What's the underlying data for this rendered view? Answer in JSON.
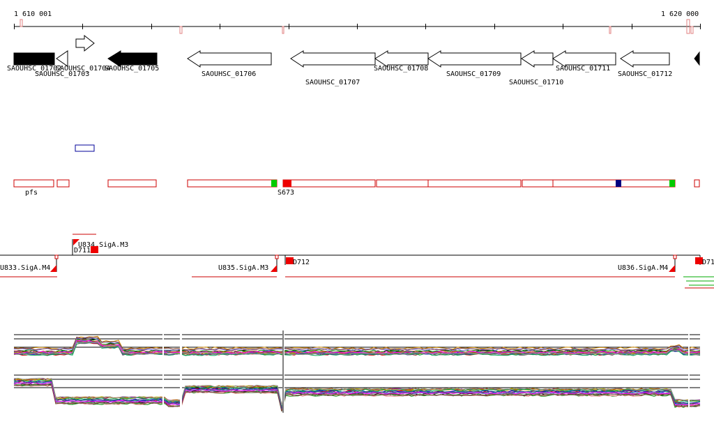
{
  "ruler": {
    "start_label": "1 610 001",
    "end_label": "1 620 000"
  },
  "genes": [
    {
      "label": "SAOUHSC_01702",
      "style": "filled",
      "dir": "right"
    },
    {
      "label": "SAOUHSC_01703",
      "style": "open",
      "dir": "left"
    },
    {
      "label": "SAOUHSC_01704",
      "style": "open",
      "dir": "right"
    },
    {
      "label": "SAOUHSC_01705",
      "style": "filled",
      "dir": "left"
    },
    {
      "label": "SAOUHSC_01706",
      "style": "open",
      "dir": "left"
    },
    {
      "label": "SAOUHSC_01707",
      "style": "open",
      "dir": "left"
    },
    {
      "label": "SAOUHSC_01708",
      "style": "open",
      "dir": "left"
    },
    {
      "label": "SAOUHSC_01709",
      "style": "open",
      "dir": "left"
    },
    {
      "label": "SAOUHSC_01710",
      "style": "open",
      "dir": "left"
    },
    {
      "label": "SAOUHSC_01711",
      "style": "open",
      "dir": "left"
    },
    {
      "label": "SAOUHSC_01712",
      "style": "open",
      "dir": "left"
    },
    {
      "label": "",
      "style": "filled",
      "dir": "left"
    }
  ],
  "regions": {
    "label_pfs": "pfs",
    "label_s673": "S673"
  },
  "promoters": {
    "u833": "U833.SigA.M4",
    "u834": "U834.SigA.M3",
    "d711": "D711",
    "u835": "U835.SigA.M3",
    "d712": "D712",
    "u836": "U836.SigA.M4",
    "d71x": "D71"
  },
  "colors": {
    "region_outline": "#cc0000",
    "green_mark": "#00cc00",
    "navy_mark": "#000080",
    "red_mark": "#ee0000",
    "blue_box": "#000099"
  },
  "expression_series": [
    "#000000",
    "#cc0000",
    "#008800",
    "#0000cc",
    "#cc8800",
    "#880088",
    "#008888",
    "#666666",
    "#e07070",
    "#70a070",
    "#7070e0",
    "#b0b000",
    "#aa5500",
    "#ff00ff",
    "#00aa55",
    "#804040",
    "#405080",
    "#999999"
  ]
}
